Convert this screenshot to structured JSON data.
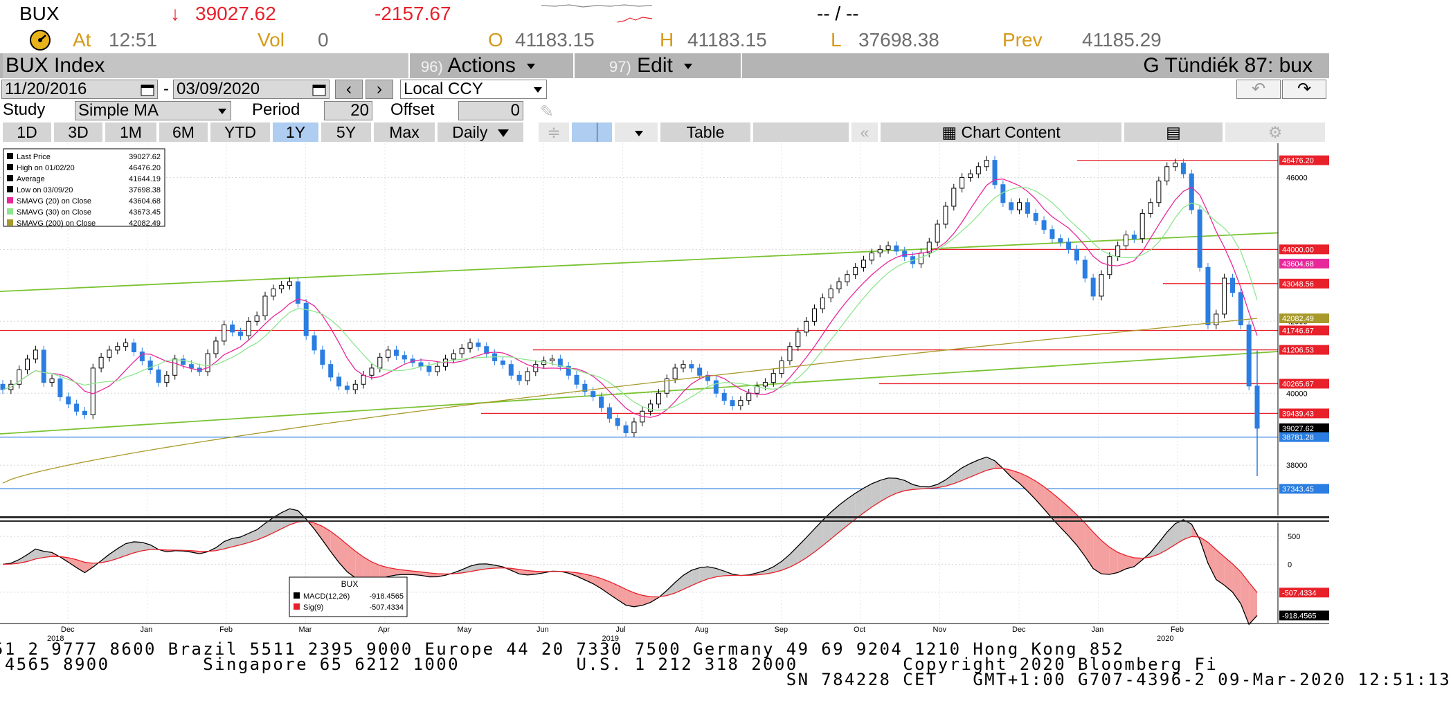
{
  "quote": {
    "ticker": "BUX",
    "last": "39027.62",
    "change": "-2157.67",
    "bidask": "-- / --",
    "at_label": "At",
    "time": "12:51",
    "vol_label": "Vol",
    "vol": "0",
    "open_label": "O",
    "open": "41183.15",
    "high_label": "H",
    "high": "41183.15",
    "low_label": "L",
    "low": "37698.38",
    "prev_label": "Prev",
    "prev": "41185.29"
  },
  "titlebar": {
    "security": "BUX Index",
    "actions_num": "96)",
    "actions": "Actions",
    "edit_num": "97)",
    "edit": "Edit",
    "page": "G Tündiék 87: bux"
  },
  "range": {
    "start": "11/20/2016",
    "sep": "-",
    "end": "03/09/2020",
    "currency": "Local CCY"
  },
  "study": {
    "study_label": "Study",
    "study_value": "Simple MA",
    "period_label": "Period",
    "period_value": "20",
    "offset_label": "Offset",
    "offset_value": "0"
  },
  "tabs": [
    "1D",
    "3D",
    "1M",
    "6M",
    "YTD",
    "1Y",
    "5Y",
    "Max"
  ],
  "active_tab": "1Y",
  "toolbar": {
    "frequency": "Daily",
    "table": "Table",
    "chart_content": "Chart Content"
  },
  "legend": {
    "rows": [
      {
        "label": "Last Price",
        "value": "39027.62",
        "color": "#000000"
      },
      {
        "label": "High on 01/02/20",
        "value": "46476.20",
        "color": "#000000"
      },
      {
        "label": "Average",
        "value": "41644.19",
        "color": "#000000"
      },
      {
        "label": "Low on 03/09/20",
        "value": "37698.38",
        "color": "#000000"
      },
      {
        "label": "SMAVG (20)  on Close",
        "value": "43604.68",
        "color": "#e8279b"
      },
      {
        "label": "SMAVG (30)  on Close",
        "value": "43673.45",
        "color": "#8ee68e"
      },
      {
        "label": "SMAVG (200)  on Close",
        "value": "42082.49",
        "color": "#a89a2a"
      }
    ]
  },
  "macd_legend": {
    "title": "BUX",
    "rows": [
      {
        "label": "MACD(12,26)",
        "value": "-918.4565",
        "color": "#000000"
      },
      {
        "label": "Sig(9)",
        "value": "-507.4334",
        "color": "#e8202a"
      }
    ]
  },
  "chart_data": {
    "type": "line",
    "price_ticks": [
      "46000",
      "44000",
      "42000",
      "40000",
      "38000"
    ],
    "price_tags": [
      {
        "value": 46476.2,
        "text": "46476.20",
        "color": "#e8202a"
      },
      {
        "value": 44000.0,
        "text": "44000.00",
        "color": "#e8202a"
      },
      {
        "value": 43604.68,
        "text": "43604.68",
        "color": "#e8279b"
      },
      {
        "value": 43048.56,
        "text": "43048.56",
        "color": "#e8202a"
      },
      {
        "value": 42082.49,
        "text": "42082.49",
        "color": "#a89a2a"
      },
      {
        "value": 41746.67,
        "text": "41746.67",
        "color": "#e8202a"
      },
      {
        "value": 41206.53,
        "text": "41206.53",
        "color": "#e8202a"
      },
      {
        "value": 40265.67,
        "text": "40265.67",
        "color": "#e8202a"
      },
      {
        "value": 39439.43,
        "text": "39439.43",
        "color": "#e8202a"
      },
      {
        "value": 39027.62,
        "text": "39027.62",
        "color": "#000000"
      },
      {
        "value": 38781.28,
        "text": "38781.28",
        "color": "#2a7de1"
      },
      {
        "value": 37343.45,
        "text": "37343.45",
        "color": "#2a7de1"
      }
    ],
    "macd_ticks": [
      "500",
      "0",
      "-500"
    ],
    "macd_tags": [
      {
        "value": -507.4334,
        "text": "-507.4334",
        "color": "#e8202a"
      },
      {
        "value": -918.4565,
        "text": "-918.4565",
        "color": "#000000"
      }
    ],
    "months": [
      "Dec",
      "Jan",
      "Feb",
      "Mar",
      "Apr",
      "May",
      "Jun",
      "Jul",
      "Aug",
      "Sep",
      "Oct",
      "Nov",
      "Dec",
      "Jan",
      "Feb"
    ],
    "years": [
      {
        "text": "2018",
        "month_index": 0
      },
      {
        "text": "2019",
        "month_index": 7
      },
      {
        "text": "2020",
        "month_index": 14
      }
    ],
    "price_series": [
      {
        "name": "Last Price",
        "values": [
          40100,
          40250,
          40650,
          40950,
          41200,
          40300,
          40400,
          39900,
          39700,
          39500,
          39400,
          40700,
          41000,
          41200,
          41300,
          41400,
          41150,
          40900,
          40650,
          40300,
          40500,
          40950,
          40800,
          40700,
          40600,
          41100,
          41450,
          41900,
          41700,
          41600,
          42000,
          42150,
          42700,
          42900,
          43000,
          43100,
          42500,
          41600,
          41200,
          40800,
          40450,
          40200,
          40100,
          40250,
          40500,
          40700,
          41000,
          41200,
          41050,
          40950,
          40850,
          40750,
          40600,
          40750,
          40950,
          41100,
          41250,
          41400,
          41300,
          41100,
          40900,
          40800,
          40500,
          40350,
          40600,
          40800,
          40900,
          40950,
          40750,
          40500,
          40250,
          40050,
          39900,
          39600,
          39300,
          39100,
          38900,
          39200,
          39500,
          39700,
          40000,
          40400,
          40700,
          40800,
          40700,
          40500,
          40350,
          40000,
          39800,
          39650,
          39800,
          40000,
          40200,
          40300,
          40550,
          40900,
          41300,
          41700,
          42000,
          42350,
          42650,
          42900,
          43100,
          43300,
          43500,
          43700,
          43900,
          44000,
          44100,
          43950,
          43800,
          43600,
          43900,
          44200,
          44700,
          45200,
          45700,
          46000,
          46100,
          46300,
          46476,
          45800,
          45300,
          45100,
          45300,
          45000,
          44800,
          44550,
          44300,
          44200,
          44000,
          43700,
          43200,
          42700,
          43300,
          43800,
          44100,
          44400,
          44300,
          45000,
          45300,
          45900,
          46300,
          46400,
          46100,
          45100,
          43500,
          41900,
          42200,
          43200,
          42800,
          41900,
          40200,
          39027
        ]
      }
    ],
    "sma20_end": 43604.68,
    "sma30_end": 43673.45,
    "sma200_end": 42082.49,
    "macd_end": -918.4565,
    "signal_end": -507.4334
  },
  "footer": {
    "line1": "51 2 9777 8600 Brazil 5511 2395 9000 Europe 44 20 7330 7500 Germany 49 69 9204 1210 Hong Kong 852",
    "line2": " 4565 8900        Singapore 65 6212 1000          U.S. 1 212 318 2000         Copyright 2020 Bloomberg Fi",
    "line3": "                                                                    SN 784228 CET   GMT+1:00 G707-4396-2 09-Mar-2020 12:51:13"
  }
}
